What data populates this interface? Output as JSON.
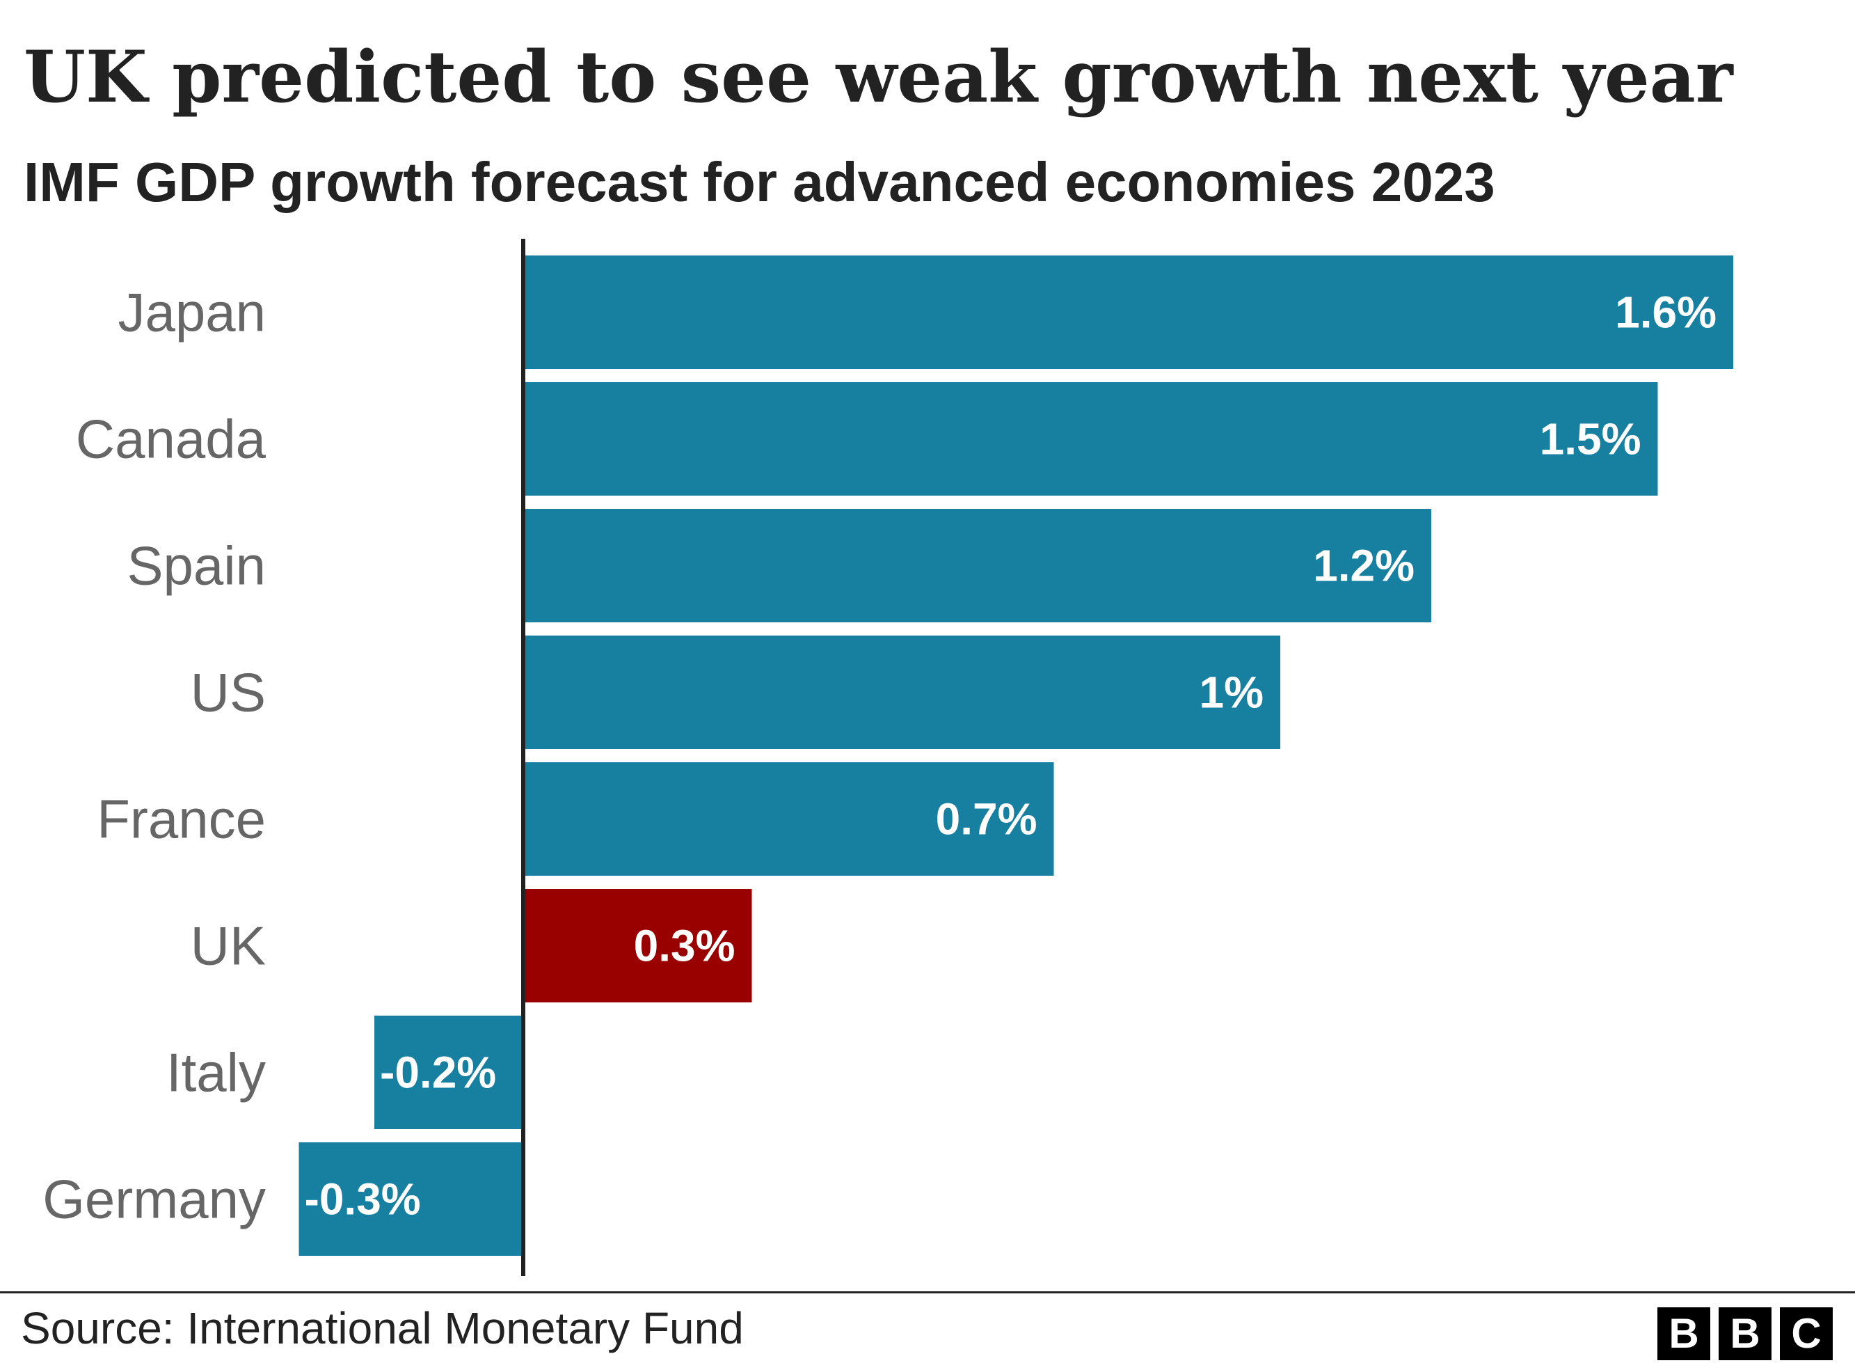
{
  "header": {
    "title": "UK predicted to see weak growth next year",
    "subtitle": "IMF GDP growth forecast for advanced economies 2023"
  },
  "footer": {
    "source": "Source: International Monetary Fund",
    "logo_letters": [
      "B",
      "B",
      "C"
    ]
  },
  "colors": {
    "bar": "#1780a1",
    "highlight": "#990000",
    "axis": "#222222",
    "category_text": "#666666",
    "value_text": "#ffffff"
  },
  "chart_data": {
    "type": "bar",
    "orientation": "horizontal",
    "title": "UK predicted to see weak growth next year",
    "subtitle": "IMF GDP growth forecast for advanced economies 2023",
    "categories": [
      "Japan",
      "Canada",
      "Spain",
      "US",
      "France",
      "UK",
      "Italy",
      "Germany"
    ],
    "values": [
      1.6,
      1.5,
      1.2,
      1.0,
      0.7,
      0.3,
      -0.2,
      -0.3
    ],
    "value_labels": [
      "1.6%",
      "1.5%",
      "1.2%",
      "1%",
      "0.7%",
      "0.3%",
      "-0.2%",
      "-0.3%"
    ],
    "highlight": "UK",
    "xlim": [
      -0.3,
      1.6
    ],
    "xlabel": "",
    "ylabel": "",
    "grid": false,
    "legend": "none",
    "source": "Source: International Monetary Fund"
  }
}
